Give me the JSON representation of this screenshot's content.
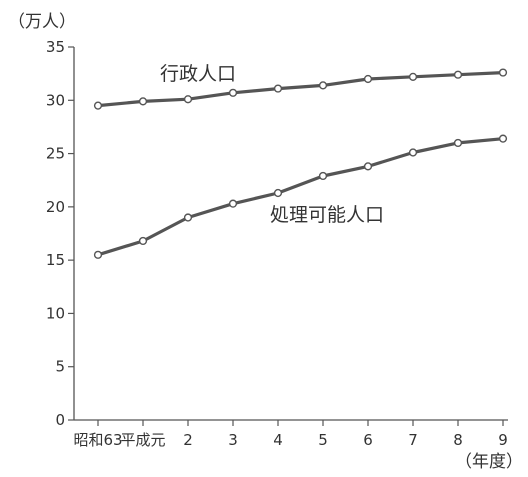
{
  "chart_data": {
    "type": "line",
    "title": "",
    "ylabel": "（万人）",
    "xlabel": "（年度）",
    "ylim": [
      0,
      35
    ],
    "y_ticks": [
      0,
      5,
      10,
      15,
      20,
      25,
      30,
      35
    ],
    "categories": [
      "昭和63",
      "平成元",
      "2",
      "3",
      "4",
      "5",
      "6",
      "7",
      "8",
      "9"
    ],
    "series": [
      {
        "name": "行政人口",
        "values": [
          29.5,
          29.9,
          30.1,
          30.7,
          31.1,
          31.4,
          32.0,
          32.2,
          32.4,
          32.6
        ]
      },
      {
        "name": "処理可能人口",
        "values": [
          15.5,
          16.8,
          19.0,
          20.3,
          21.3,
          22.9,
          23.8,
          25.1,
          26.0,
          26.4
        ]
      }
    ],
    "grid": false,
    "legend": "inline labels"
  }
}
